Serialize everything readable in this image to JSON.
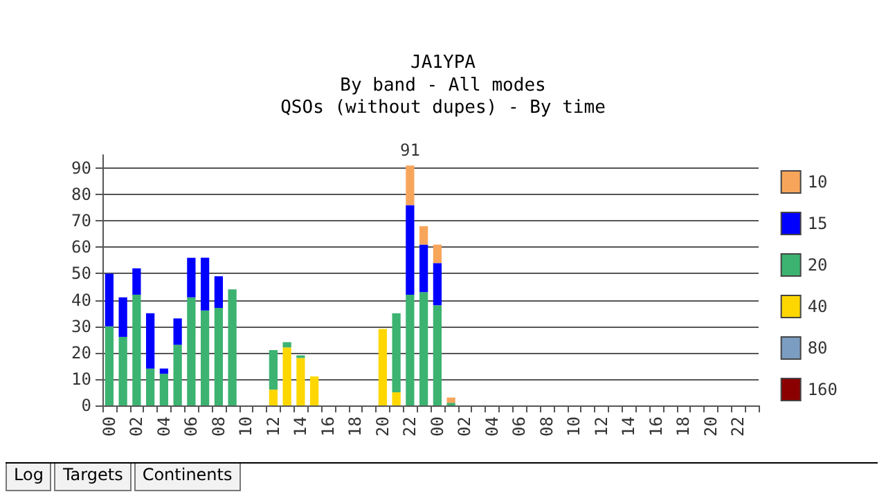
{
  "chart_data": {
    "type": "bar",
    "stacked": true,
    "title": "JA1YPA",
    "subtitle": "By band - All modes\nQSOs (without dupes) - By time",
    "categories": [
      "00",
      null,
      "02",
      null,
      "04",
      null,
      "06",
      null,
      "08",
      null,
      "10",
      null,
      "12",
      null,
      "14",
      null,
      "16",
      null,
      "18",
      null,
      "20",
      null,
      "22",
      null,
      "00",
      null,
      "02",
      null,
      "04",
      null,
      "06",
      null,
      "08",
      null,
      "10",
      null,
      "12",
      null,
      "14",
      null,
      "16",
      null,
      "18",
      null,
      "20",
      null,
      "22",
      null
    ],
    "series": [
      {
        "name": "160",
        "color": "#8b0000",
        "values": [
          0,
          0,
          0,
          0,
          0,
          0,
          0,
          0,
          0,
          0,
          0,
          0,
          0,
          0,
          0,
          0,
          0,
          0,
          0,
          0,
          0,
          0,
          0,
          0,
          0,
          0,
          0,
          0,
          0,
          0,
          0,
          0,
          0,
          0,
          0,
          0,
          0,
          0,
          0,
          0,
          0,
          0,
          0,
          0,
          0,
          0,
          0,
          0
        ]
      },
      {
        "name": "80",
        "color": "#7b9dc1",
        "values": [
          0,
          0,
          0,
          0,
          0,
          0,
          0,
          0,
          0,
          0,
          0,
          0,
          0,
          0,
          0,
          0,
          0,
          0,
          0,
          0,
          0,
          0,
          0,
          0,
          0,
          0,
          0,
          0,
          0,
          0,
          0,
          0,
          0,
          0,
          0,
          0,
          0,
          0,
          0,
          0,
          0,
          0,
          0,
          0,
          0,
          0,
          0,
          0
        ]
      },
      {
        "name": "40",
        "color": "#ffd700",
        "values": [
          0,
          0,
          0,
          0,
          0,
          0,
          0,
          0,
          0,
          0,
          0,
          0,
          6,
          22,
          18,
          11,
          0,
          0,
          0,
          0,
          29,
          5,
          0,
          0,
          0,
          0,
          0,
          0,
          0,
          0,
          0,
          0,
          0,
          0,
          0,
          0,
          0,
          0,
          0,
          0,
          0,
          0,
          0,
          0,
          0,
          0,
          0,
          0
        ]
      },
      {
        "name": "20",
        "color": "#3cb371",
        "values": [
          30,
          26,
          42,
          14,
          12,
          23,
          41,
          36,
          37,
          44,
          0,
          0,
          15,
          2,
          1,
          0,
          0,
          0,
          0,
          0,
          0,
          30,
          42,
          43,
          38,
          1,
          0,
          0,
          0,
          0,
          0,
          0,
          0,
          0,
          0,
          0,
          0,
          0,
          0,
          0,
          0,
          0,
          0,
          0,
          0,
          0,
          0,
          0
        ]
      },
      {
        "name": "15",
        "color": "#0000ff",
        "values": [
          20,
          15,
          10,
          21,
          2,
          10,
          15,
          20,
          12,
          0,
          0,
          0,
          0,
          0,
          0,
          0,
          0,
          0,
          0,
          0,
          0,
          0,
          34,
          18,
          16,
          0,
          0,
          0,
          0,
          0,
          0,
          0,
          0,
          0,
          0,
          0,
          0,
          0,
          0,
          0,
          0,
          0,
          0,
          0,
          0,
          0,
          0,
          0
        ]
      },
      {
        "name": "10",
        "color": "#f8a55c",
        "values": [
          0,
          0,
          0,
          0,
          0,
          0,
          0,
          0,
          0,
          0,
          0,
          0,
          0,
          0,
          0,
          0,
          0,
          0,
          0,
          0,
          0,
          0,
          15,
          7,
          7,
          2,
          0,
          0,
          0,
          0,
          0,
          0,
          0,
          0,
          0,
          0,
          0,
          0,
          0,
          0,
          0,
          0,
          0,
          0,
          0,
          0,
          0,
          0
        ]
      }
    ],
    "totals": [
      null,
      null,
      null,
      null,
      null,
      null,
      null,
      null,
      null,
      null,
      null,
      null,
      null,
      null,
      null,
      null,
      null,
      null,
      null,
      null,
      null,
      null,
      "91",
      null,
      null,
      null,
      null,
      null,
      null,
      null,
      null,
      null,
      null,
      null,
      null,
      null,
      null,
      null,
      null,
      null,
      null,
      null,
      null,
      null,
      null,
      null,
      null,
      null
    ],
    "ylim": [
      0,
      95
    ],
    "yticks": [
      0,
      10,
      20,
      30,
      40,
      50,
      60,
      70,
      80,
      90
    ],
    "grid": "y",
    "legend": "right",
    "annotations": [
      "Log",
      "Targets",
      "Continents"
    ]
  }
}
